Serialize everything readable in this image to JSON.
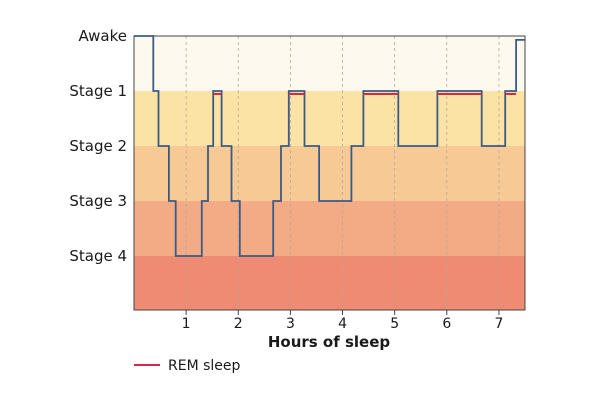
{
  "chart_data": {
    "type": "line",
    "title": "",
    "xlabel": "Hours of sleep",
    "ylabel": "",
    "xlim": [
      0,
      7.5
    ],
    "x_ticks": [
      1,
      2,
      3,
      4,
      5,
      6,
      7
    ],
    "x_tick_labels": [
      "1",
      "2",
      "3",
      "4",
      "5",
      "6",
      "7"
    ],
    "y_categories": [
      "Awake",
      "Stage 1",
      "Stage 2",
      "Stage 3",
      "Stage 4"
    ],
    "band_colors": [
      "#fdf9ee",
      "#fbe3a6",
      "#f6c995",
      "#f3ab86",
      "#ef8b72"
    ],
    "grid": true,
    "series": [
      {
        "name": "",
        "style": "step",
        "color": "#3c5a86",
        "points": [
          [
            0,
            0
          ],
          [
            0.37,
            0
          ],
          [
            0.37,
            1
          ],
          [
            0.47,
            1
          ],
          [
            0.47,
            2
          ],
          [
            0.67,
            2
          ],
          [
            0.67,
            3
          ],
          [
            0.8,
            3
          ],
          [
            0.8,
            4
          ],
          [
            1.3,
            4
          ],
          [
            1.3,
            3
          ],
          [
            1.42,
            3
          ],
          [
            1.42,
            2
          ],
          [
            1.52,
            2
          ],
          [
            1.52,
            1
          ],
          [
            1.68,
            1
          ],
          [
            1.68,
            2
          ],
          [
            1.87,
            2
          ],
          [
            1.87,
            3
          ],
          [
            2.03,
            3
          ],
          [
            2.03,
            4
          ],
          [
            2.67,
            4
          ],
          [
            2.67,
            3
          ],
          [
            2.82,
            3
          ],
          [
            2.82,
            2
          ],
          [
            2.97,
            2
          ],
          [
            2.97,
            1
          ],
          [
            3.27,
            1
          ],
          [
            3.27,
            2
          ],
          [
            3.55,
            2
          ],
          [
            3.55,
            3
          ],
          [
            4.17,
            3
          ],
          [
            4.17,
            2
          ],
          [
            4.4,
            2
          ],
          [
            4.4,
            1
          ],
          [
            5.07,
            1
          ],
          [
            5.07,
            2
          ],
          [
            5.82,
            2
          ],
          [
            5.82,
            1
          ],
          [
            6.67,
            1
          ],
          [
            6.67,
            2
          ],
          [
            7.12,
            2
          ],
          [
            7.12,
            1
          ],
          [
            7.33,
            1
          ],
          [
            7.33,
            0.07
          ],
          [
            7.5,
            0.07
          ]
        ]
      },
      {
        "name": "REM sleep",
        "style": "segments",
        "color": "#d4284e",
        "segments": [
          [
            1.52,
            1.68
          ],
          [
            2.97,
            3.27
          ],
          [
            4.4,
            5.07
          ],
          [
            5.82,
            6.67
          ],
          [
            7.12,
            7.33
          ]
        ]
      }
    ],
    "legend_position": "bottom-left"
  }
}
